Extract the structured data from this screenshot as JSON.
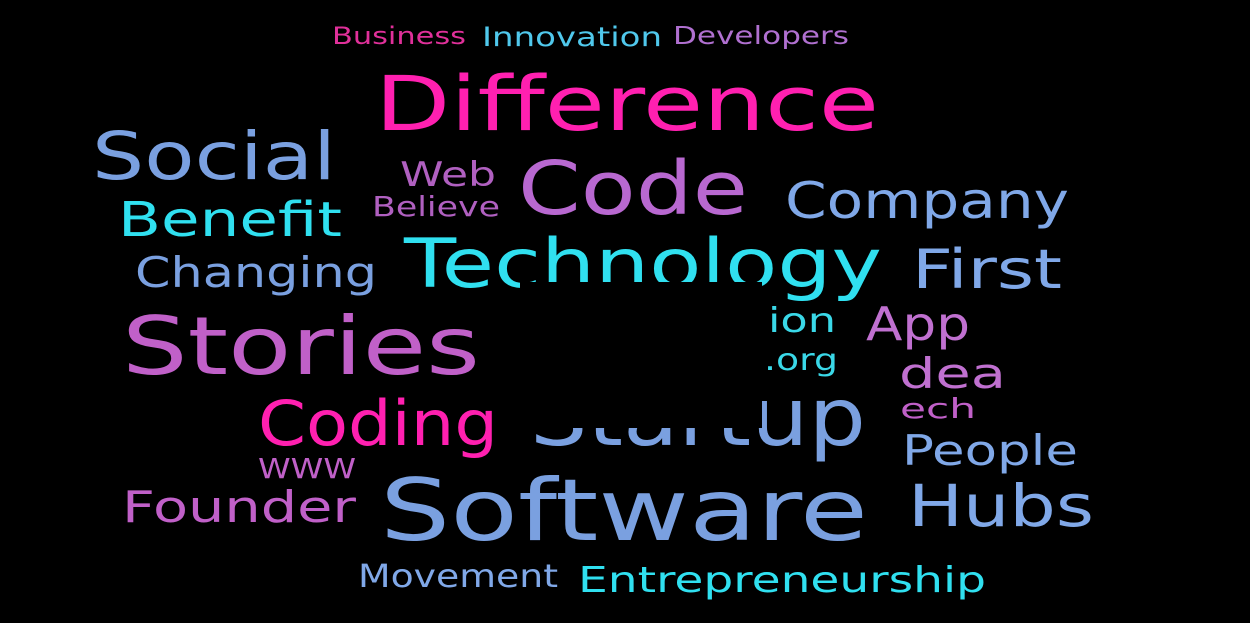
{
  "words": [
    {
      "text": "Business"
    },
    {
      "text": "Innovation"
    },
    {
      "text": "Developers"
    },
    {
      "text": "Difference"
    },
    {
      "text": "Social"
    },
    {
      "text": "Web"
    },
    {
      "text": "Code"
    },
    {
      "text": "Company"
    },
    {
      "text": "Benefit"
    },
    {
      "text": "Believe"
    },
    {
      "text": "Changing"
    },
    {
      "text": "Technology"
    },
    {
      "text": "First"
    },
    {
      "text": "ion"
    },
    {
      "text": "App"
    },
    {
      "text": "Stories"
    },
    {
      "text": ".org"
    },
    {
      "text": "Idea"
    },
    {
      "text": "ech"
    },
    {
      "text": "Coding"
    },
    {
      "text": "Startup"
    },
    {
      "text": "People"
    },
    {
      "text": "WWW"
    },
    {
      "text": "Founder"
    },
    {
      "text": "Software"
    },
    {
      "text": "Hubs"
    },
    {
      "text": "Movement"
    },
    {
      "text": "Entrepreneurship"
    }
  ]
}
